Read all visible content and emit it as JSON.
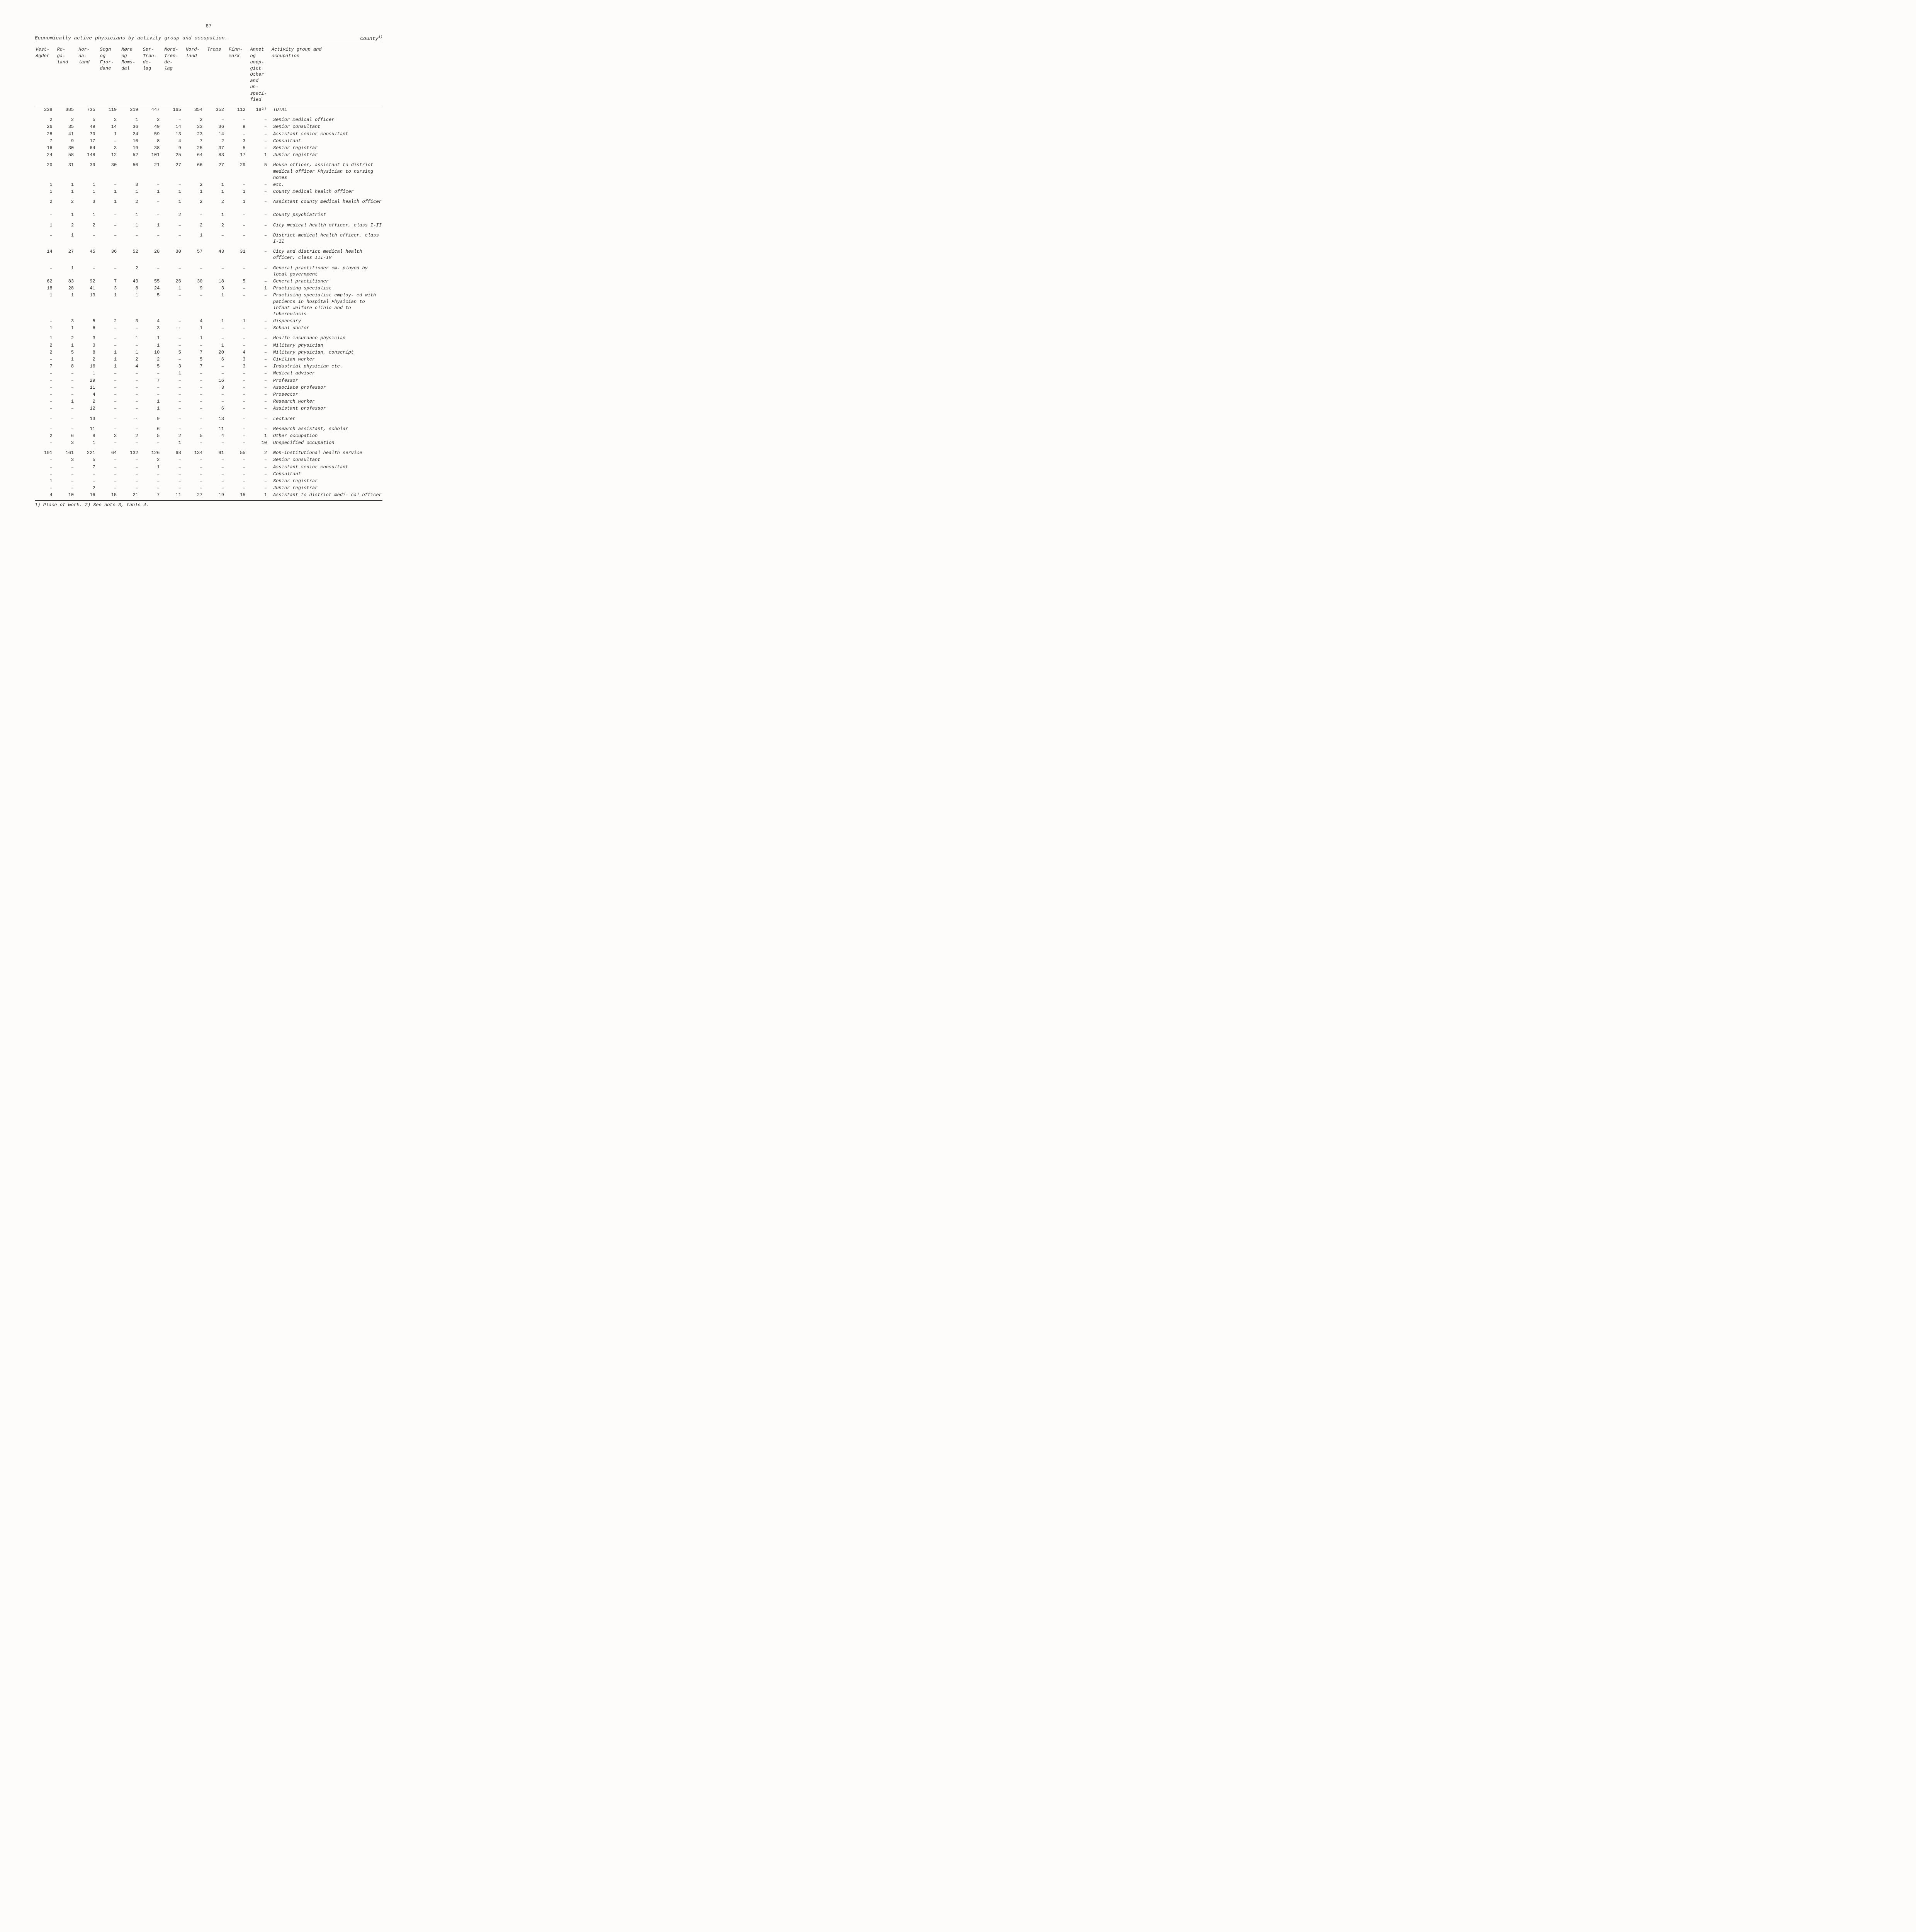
{
  "page_number": "67",
  "title_left": "Economically active physicians by activity group and occupation.",
  "title_right": "County",
  "title_sup": "1)",
  "columns": [
    "Vest-\nAgder",
    "Ro-\nga-\nland",
    "Hor-\nda-\nland",
    "Sogn\nog\nFjor-\ndane",
    "Møre\nog\nRoms-\ndal",
    "Sør-\nTrøn-\nde-\nlag",
    "Nord-\nTrøn-\nde-\nlag",
    "Nord-\nland",
    "Troms",
    "Finn-\nmark",
    "Annet\nog\nuopp-\ngitt\nOther\nand\nun-\nspeci-\nfied",
    "Activity group and\noccupation"
  ],
  "rows": [
    {
      "v": [
        "238",
        "385",
        "735",
        "119",
        "319",
        "447",
        "165",
        "354",
        "352",
        "112",
        "18²⁾"
      ],
      "label": "TOTAL",
      "space_before": "none"
    },
    {
      "v": [
        "2",
        "2",
        "5",
        "2",
        "1",
        "2",
        "–",
        "2",
        "–",
        "–",
        "–"
      ],
      "label": "Senior medical officer",
      "space_before": "small"
    },
    {
      "v": [
        "26",
        "35",
        "49",
        "14",
        "36",
        "49",
        "14",
        "33",
        "36",
        "9",
        "–"
      ],
      "label": "Senior consultant"
    },
    {
      "v": [
        "28",
        "41",
        "79",
        "1",
        "24",
        "59",
        "13",
        "23",
        "14",
        "–",
        "–"
      ],
      "label": "Assistant senior consultant"
    },
    {
      "v": [
        "7",
        "9",
        "17",
        "–",
        "10",
        "8",
        "4",
        "7",
        "2",
        "3",
        "–"
      ],
      "label": "Consultant"
    },
    {
      "v": [
        "16",
        "30",
        "64",
        "3",
        "19",
        "38",
        "9",
        "25",
        "37",
        "5",
        "–"
      ],
      "label": "Senior registrar"
    },
    {
      "v": [
        "24",
        "58",
        "148",
        "12",
        "52",
        "101",
        "25",
        "64",
        "83",
        "17",
        "1"
      ],
      "label": "Junior registrar"
    },
    {
      "v": [
        "20",
        "31",
        "39",
        "30",
        "50",
        "21",
        "27",
        "66",
        "27",
        "29",
        "5"
      ],
      "label": "House officer, assistant to district medical officer Physician to nursing homes",
      "space_before": "small"
    },
    {
      "v": [
        "1",
        "1",
        "1",
        "–",
        "3",
        "–",
        "–",
        "2",
        "1",
        "–",
        "–"
      ],
      "label": "etc."
    },
    {
      "v": [
        "1",
        "1",
        "1",
        "1",
        "1",
        "1",
        "1",
        "1",
        "1",
        "1",
        "–"
      ],
      "label": "County medical health officer"
    },
    {
      "v": [
        "2",
        "2",
        "3",
        "1",
        "2",
        "–",
        "1",
        "2",
        "2",
        "1",
        "–"
      ],
      "label": "Assistant county medical health officer",
      "space_before": "small"
    },
    {
      "v": [
        "–",
        "1",
        "1",
        "–",
        "1",
        "–",
        "2",
        "–",
        "1",
        "–",
        "–"
      ],
      "label": "County psychiatrist",
      "space_before": "big"
    },
    {
      "v": [
        "1",
        "2",
        "2",
        "–",
        "1",
        "1",
        "–",
        "2",
        "2",
        "–",
        "–"
      ],
      "label": "City medical health officer, class I-II",
      "space_before": "small"
    },
    {
      "v": [
        "–",
        "1",
        "–",
        "–",
        "–",
        "–",
        "–",
        "1",
        "–",
        "–",
        "–"
      ],
      "label": "District medical health officer, class I-II",
      "space_before": "small"
    },
    {
      "v": [
        "14",
        "27",
        "45",
        "36",
        "52",
        "28",
        "30",
        "57",
        "43",
        "31",
        "–"
      ],
      "label": "City and district medical health officer, class III-IV",
      "space_before": "small"
    },
    {
      "v": [
        "–",
        "1",
        "–",
        "–",
        "2",
        "–",
        "–",
        "–",
        "–",
        "–",
        "–"
      ],
      "label": "General practitioner em- ployed by local government",
      "space_before": "small"
    },
    {
      "v": [
        "62",
        "83",
        "92",
        "7",
        "43",
        "55",
        "26",
        "30",
        "18",
        "5",
        "–"
      ],
      "label": "General practitioner"
    },
    {
      "v": [
        "18",
        "28",
        "41",
        "3",
        "8",
        "24",
        "1",
        "9",
        "3",
        "–",
        "1"
      ],
      "label": "Practising specialist"
    },
    {
      "v": [
        "1",
        "1",
        "13",
        "1",
        "1",
        "5",
        "–",
        "–",
        "1",
        "–",
        "–"
      ],
      "label": "Practising specialist employ- ed with patients in hospital Physician to infant welfare clinic and to tuberculosis"
    },
    {
      "v": [
        "–",
        "3",
        "5",
        "2",
        "3",
        "4",
        "–",
        "4",
        "1",
        "1",
        "–"
      ],
      "label": "dispensary"
    },
    {
      "v": [
        "1",
        "1",
        "6",
        "–",
        "–",
        "3",
        "··",
        "1",
        "–",
        "–",
        "–"
      ],
      "label": "School doctor"
    },
    {
      "v": [
        "1",
        "2",
        "3",
        "–",
        "1",
        "1",
        "–",
        "1",
        "–",
        "–",
        "–"
      ],
      "label": "Health insurance physician",
      "space_before": "small"
    },
    {
      "v": [
        "2",
        "1",
        "3",
        "–",
        "–",
        "1",
        "–",
        "–",
        "1",
        "–",
        "–"
      ],
      "label": "Military physician"
    },
    {
      "v": [
        "2",
        "5",
        "8",
        "1",
        "1",
        "10",
        "5",
        "7",
        "20",
        "4",
        "–"
      ],
      "label": "Military physician, conscript"
    },
    {
      "v": [
        "–",
        "1",
        "2",
        "1",
        "2",
        "2",
        "–",
        "5",
        "6",
        "3",
        "–"
      ],
      "label": "Civilian worker"
    },
    {
      "v": [
        "7",
        "8",
        "16",
        "1",
        "4",
        "5",
        "3",
        "7",
        "–",
        "3",
        "–"
      ],
      "label": "Industrial physician etc."
    },
    {
      "v": [
        "–",
        "–",
        "1",
        "–",
        "–",
        "–",
        "1",
        "–",
        "–",
        "–",
        "–"
      ],
      "label": "Medical adviser"
    },
    {
      "v": [
        "–",
        "–",
        "29",
        "–",
        "–",
        "7",
        "–",
        "–",
        "16",
        "–",
        "–"
      ],
      "label": "Professor"
    },
    {
      "v": [
        "–",
        "–",
        "11",
        "–",
        "–",
        "–",
        "–",
        "–",
        "3",
        "–",
        "–"
      ],
      "label": "Associate professor"
    },
    {
      "v": [
        "–",
        "–",
        "4",
        "–",
        "–",
        "–",
        "–",
        "–",
        "–",
        "–",
        "–"
      ],
      "label": "Prosector"
    },
    {
      "v": [
        "–",
        "1",
        "2",
        "–",
        "–",
        "1",
        "–",
        "–",
        "–",
        "–",
        "–"
      ],
      "label": "Research worker"
    },
    {
      "v": [
        "–",
        "–",
        "12",
        "–",
        "–",
        "1",
        "–",
        "–",
        "6",
        "–",
        "–"
      ],
      "label": "Assistant professor"
    },
    {
      "v": [
        "–",
        "–",
        "13",
        "–",
        "··",
        "9",
        "–",
        "–",
        "13",
        "–",
        "–"
      ],
      "label": "Lecturer",
      "space_before": "small"
    },
    {
      "v": [
        "–",
        "–",
        "11",
        "–",
        "–",
        "6",
        "–",
        "–",
        "11",
        "–",
        "–"
      ],
      "label": "Research assistant, scholar",
      "space_before": "small"
    },
    {
      "v": [
        "2",
        "6",
        "8",
        "3",
        "2",
        "5",
        "2",
        "5",
        "4",
        "–",
        "1"
      ],
      "label": "Other occupation"
    },
    {
      "v": [
        "–",
        "3",
        "1",
        "–",
        "–",
        "–",
        "1",
        "–",
        "–",
        "–",
        "10"
      ],
      "label": "Unspecified occupation"
    },
    {
      "v": [
        "101",
        "161",
        "221",
        "64",
        "132",
        "126",
        "68",
        "134",
        "91",
        "55",
        "2"
      ],
      "label": "Non-institutional health service",
      "space_before": "small",
      "label_above": true
    },
    {
      "v": [
        "–",
        "3",
        "5",
        "–",
        "–",
        "2",
        "–",
        "–",
        "–",
        "–",
        "–"
      ],
      "label": "Senior consultant"
    },
    {
      "v": [
        "–",
        "–",
        "7",
        "–",
        "–",
        "1",
        "–",
        "–",
        "–",
        "–",
        "–"
      ],
      "label": "Assistant senior consultant"
    },
    {
      "v": [
        "–",
        "–",
        "–",
        "–",
        "–",
        "–",
        "–",
        "–",
        "–",
        "–",
        "–"
      ],
      "label": "Consultant"
    },
    {
      "v": [
        "1",
        "–",
        "–",
        "–",
        "–",
        "–",
        "–",
        "–",
        "–",
        "–",
        "–"
      ],
      "label": "Senior registrar"
    },
    {
      "v": [
        "–",
        "–",
        "2",
        "–",
        "–",
        "–",
        "–",
        "–",
        "–",
        "–",
        "–"
      ],
      "label": "Junior registrar"
    },
    {
      "v": [
        "4",
        "10",
        "16",
        "15",
        "21",
        "7",
        "11",
        "27",
        "19",
        "15",
        "1"
      ],
      "label": "Assistant to district medi- cal officer"
    }
  ],
  "footnote": "1) Place of work.   2) See note 3, table 4."
}
